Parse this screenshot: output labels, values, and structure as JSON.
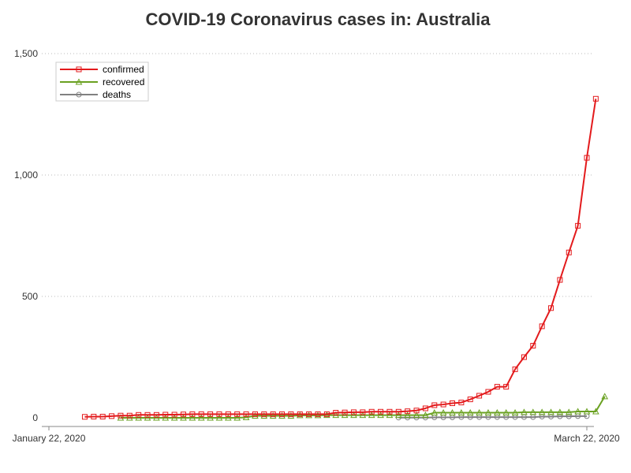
{
  "chart_data": {
    "type": "line",
    "title": "COVID-19 Coronavirus cases in: Australia",
    "xlabel": "",
    "ylabel": "",
    "x_range": [
      "2020-01-22",
      "2020-03-22"
    ],
    "x_tick_labels": [
      "January 22, 2020",
      "March 22, 2020"
    ],
    "ylim": [
      0,
      1500
    ],
    "y_ticks": [
      0,
      500,
      1000,
      1500
    ],
    "y_tick_labels": [
      "0",
      "500",
      "1,000",
      "1,500"
    ],
    "grid": "horizontal dotted",
    "legend_position": "top-left",
    "series": [
      {
        "name": "confirmed",
        "color": "#e31a1c",
        "marker": "square",
        "start": "2020-01-26",
        "values": [
          4,
          5,
          5,
          7,
          9,
          9,
          12,
          12,
          12,
          13,
          13,
          14,
          15,
          15,
          15,
          15,
          15,
          15,
          15,
          15,
          15,
          15,
          15,
          15,
          15,
          15,
          15,
          15,
          21,
          22,
          23,
          23,
          25,
          25,
          25,
          25,
          27,
          30,
          39,
          52,
          55,
          60,
          63,
          76,
          91,
          107,
          128,
          128,
          200,
          250,
          297,
          377,
          452,
          568,
          681,
          791,
          1071,
          1314
        ]
      },
      {
        "name": "recovered",
        "color": "#6aa121",
        "marker": "triangle",
        "start": "2020-01-30",
        "values": [
          0,
          0,
          0,
          0,
          0,
          0,
          0,
          0,
          0,
          0,
          0,
          0,
          0,
          0,
          2,
          8,
          8,
          8,
          8,
          8,
          10,
          10,
          10,
          11,
          11,
          11,
          11,
          11,
          11,
          11,
          11,
          11,
          11,
          11,
          11,
          21,
          21,
          21,
          21,
          21,
          21,
          21,
          21,
          21,
          21,
          23,
          23,
          23,
          23,
          23,
          23,
          26,
          26,
          26,
          88
        ]
      },
      {
        "name": "deaths",
        "color": "#808080",
        "marker": "circle",
        "start": "2020-03-01",
        "values": [
          1,
          1,
          1,
          1,
          2,
          2,
          2,
          3,
          3,
          3,
          3,
          3,
          3,
          3,
          3,
          3,
          5,
          5,
          6,
          6,
          7,
          7
        ]
      }
    ]
  }
}
